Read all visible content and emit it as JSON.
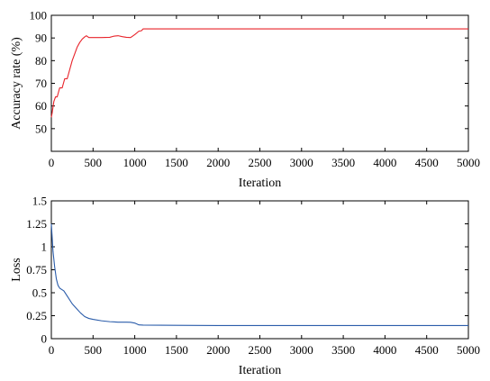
{
  "chart_data": [
    {
      "type": "line",
      "xlabel": "Iteration",
      "ylabel": "Accuracy rate (%)",
      "xlim": [
        0,
        5000
      ],
      "ylim": [
        40,
        100
      ],
      "x_ticks": [
        "0",
        "500",
        "1000",
        "1500",
        "2000",
        "2500",
        "3000",
        "3500",
        "4000",
        "4500",
        "5000"
      ],
      "y_ticks": [
        "50",
        "60",
        "70",
        "80",
        "90",
        "100"
      ],
      "grid": false,
      "line_color": "#e8232a",
      "series": [
        {
          "x": [
            0,
            10,
            30,
            50,
            70,
            100,
            130,
            160,
            190,
            220,
            250,
            280,
            310,
            340,
            370,
            400,
            420,
            450,
            500,
            600,
            700,
            750,
            800,
            850,
            900,
            950,
            1000,
            1050,
            1080,
            1100,
            1150,
            1200,
            2000,
            3000,
            4000,
            5000
          ],
          "y": [
            55,
            57,
            62,
            64,
            64,
            68,
            68,
            72,
            72,
            76,
            80,
            83,
            86,
            88,
            89.5,
            90.5,
            91,
            90.2,
            90.2,
            90.2,
            90.3,
            90.8,
            91,
            90.6,
            90.3,
            90.2,
            91.5,
            93,
            93.2,
            94,
            94,
            94,
            94,
            94,
            94,
            94
          ]
        }
      ]
    },
    {
      "type": "line",
      "xlabel": "Iteration",
      "ylabel": "Loss",
      "xlim": [
        0,
        5000
      ],
      "ylim": [
        0,
        1.5
      ],
      "x_ticks": [
        "0",
        "500",
        "1000",
        "1500",
        "2000",
        "2500",
        "3000",
        "3500",
        "4000",
        "4500",
        "5000"
      ],
      "y_ticks": [
        "0",
        "0.25",
        "0.5",
        "0.75",
        "1",
        "1.25",
        "1.5"
      ],
      "grid": false,
      "line_color": "#2a5caa",
      "series": [
        {
          "x": [
            0,
            20,
            40,
            60,
            80,
            100,
            150,
            200,
            250,
            300,
            350,
            400,
            450,
            500,
            600,
            700,
            800,
            900,
            950,
            1000,
            1050,
            1100,
            1500,
            2000,
            3000,
            4000,
            5000
          ],
          "y": [
            1.25,
            0.95,
            0.78,
            0.65,
            0.58,
            0.55,
            0.52,
            0.45,
            0.38,
            0.33,
            0.28,
            0.24,
            0.22,
            0.21,
            0.195,
            0.185,
            0.18,
            0.18,
            0.178,
            0.17,
            0.15,
            0.148,
            0.145,
            0.143,
            0.143,
            0.143,
            0.143
          ]
        }
      ]
    }
  ]
}
